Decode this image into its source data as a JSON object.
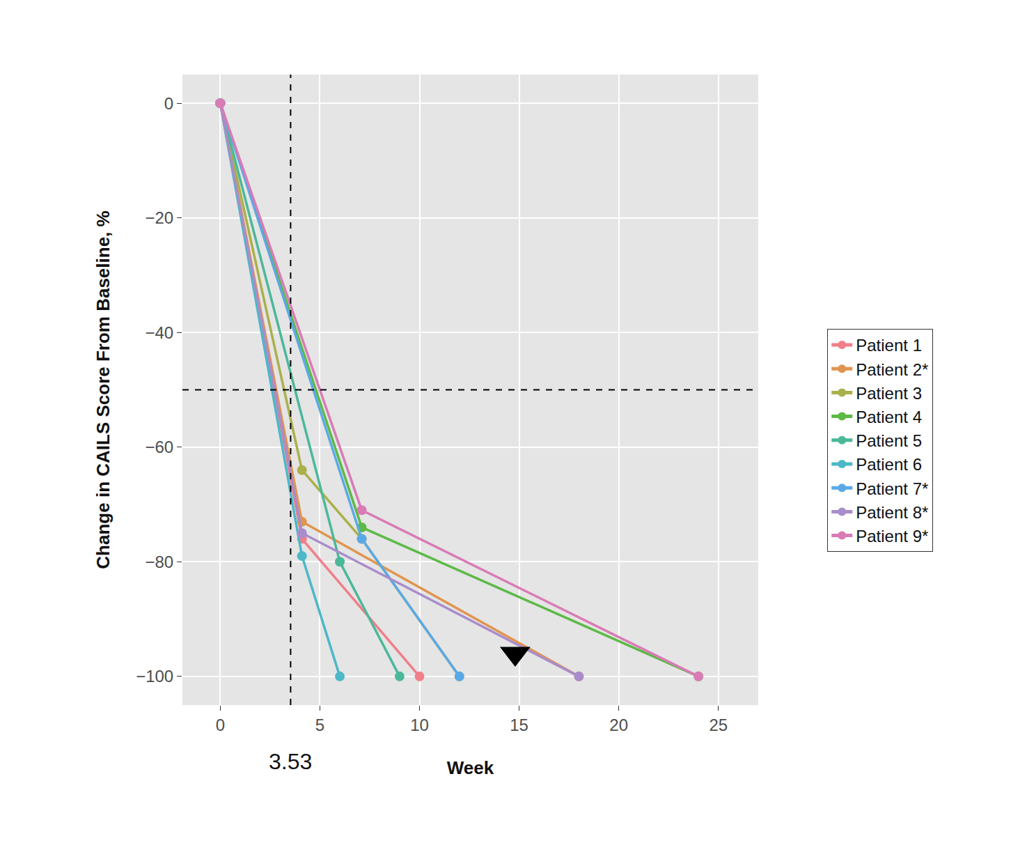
{
  "chart_data": {
    "type": "line",
    "x_label": "Week",
    "y_label": "Change in CAILS Score From Baseline, %",
    "xlim": [
      -1.9,
      27
    ],
    "xticks": [
      0,
      5,
      10,
      15,
      20,
      25
    ],
    "ylim": [
      -105,
      5
    ],
    "yticks": [
      {
        "value": -100,
        "label": "−100"
      },
      {
        "value": -80,
        "label": "−80"
      },
      {
        "value": -60,
        "label": "−60"
      },
      {
        "value": -40,
        "label": "−40"
      },
      {
        "value": -20,
        "label": "−20"
      },
      0
    ],
    "grid": true,
    "legend": "right",
    "marker": "circle",
    "series": [
      {
        "name": "Patient 1",
        "color": "#F07F8A",
        "x": [
          0,
          4.1,
          10
        ],
        "values": [
          0,
          -76,
          -100
        ]
      },
      {
        "name": "Patient 2*",
        "color": "#E0954F",
        "x": [
          0,
          4.1,
          18
        ],
        "values": [
          0,
          -73,
          -100
        ]
      },
      {
        "name": "Patient 3",
        "color": "#AAB04A",
        "x": [
          0,
          4.1,
          7.1,
          12
        ],
        "values": [
          0,
          -64,
          -76,
          -100
        ]
      },
      {
        "name": "Patient 4",
        "color": "#5CB946",
        "x": [
          0,
          7.1,
          24
        ],
        "values": [
          0,
          -74,
          -100
        ]
      },
      {
        "name": "Patient 5",
        "color": "#4BB89A",
        "x": [
          0,
          6,
          9
        ],
        "values": [
          0,
          -80,
          -100
        ]
      },
      {
        "name": "Patient 6",
        "color": "#4CB8C8",
        "x": [
          0,
          4.1,
          6
        ],
        "values": [
          0,
          -79,
          -100
        ]
      },
      {
        "name": "Patient 7*",
        "color": "#5AA9E6",
        "x": [
          0,
          7.1,
          12
        ],
        "values": [
          0,
          -76,
          -100
        ]
      },
      {
        "name": "Patient 8*",
        "color": "#A98CCB",
        "x": [
          0,
          4.1,
          18
        ],
        "values": [
          0,
          -75,
          -100
        ]
      },
      {
        "name": "Patient 9*",
        "color": "#D97BB5",
        "x": [
          0,
          7.1,
          24
        ],
        "values": [
          0,
          -71,
          -100
        ]
      }
    ],
    "reference_lines": {
      "x": 3.53,
      "x_label": "3.53",
      "y": -50,
      "line_style": "dash"
    },
    "event_marker": {
      "x": 14.8,
      "y": -96,
      "marker": "triangle-down",
      "color": "#000000"
    }
  }
}
